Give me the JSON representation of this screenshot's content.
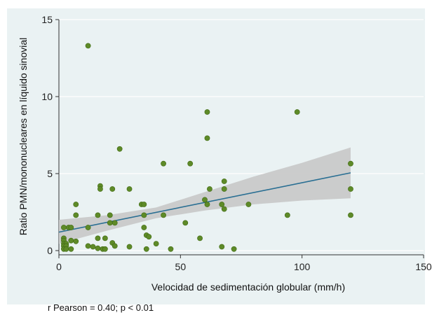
{
  "chart_data": {
    "type": "scatter",
    "title": "",
    "xlabel": "Velocidad de sedimentación globular (mm/h)",
    "ylabel": "Ratio PMN/mononucleares en líquido sinovial",
    "xlim": [
      0,
      150
    ],
    "ylim": [
      0,
      15
    ],
    "xticks": [
      0,
      50,
      100,
      150
    ],
    "yticks": [
      0,
      5,
      10,
      15
    ],
    "grid": "horizontal",
    "colors": {
      "point": "#5e8a28",
      "point_stroke": "#3f6a12",
      "fit_line": "#2a6f93",
      "ci_band": "#c8c8c8",
      "background": "#eaf2f3",
      "grid": "#ffffff"
    },
    "fit": {
      "line": [
        [
          0,
          1.2
        ],
        [
          120,
          5.05
        ]
      ],
      "ci_upper": [
        [
          0,
          2.0
        ],
        [
          20,
          2.3
        ],
        [
          40,
          2.8
        ],
        [
          60,
          3.8
        ],
        [
          80,
          4.8
        ],
        [
          100,
          5.7
        ],
        [
          120,
          6.7
        ]
      ],
      "ci_lower": [
        [
          0,
          0.45
        ],
        [
          20,
          1.3
        ],
        [
          40,
          2.1
        ],
        [
          60,
          2.6
        ],
        [
          80,
          3.0
        ],
        [
          100,
          3.25
        ],
        [
          120,
          3.4
        ]
      ]
    },
    "points": [
      [
        12,
        13.3
      ],
      [
        61,
        9.0
      ],
      [
        98,
        9.0
      ],
      [
        61,
        7.3
      ],
      [
        25,
        6.6
      ],
      [
        43,
        5.65
      ],
      [
        54,
        5.65
      ],
      [
        120,
        5.65
      ],
      [
        68,
        4.5
      ],
      [
        17,
        4.2
      ],
      [
        17,
        4.0
      ],
      [
        22,
        4.0
      ],
      [
        29,
        4.0
      ],
      [
        62,
        4.0
      ],
      [
        68,
        4.0
      ],
      [
        120,
        4.0
      ],
      [
        60,
        3.3
      ],
      [
        61,
        3.0
      ],
      [
        67,
        3.0
      ],
      [
        78,
        3.0
      ],
      [
        7,
        3.0
      ],
      [
        34,
        3.0
      ],
      [
        35,
        3.0
      ],
      [
        68,
        2.7
      ],
      [
        7,
        2.3
      ],
      [
        16,
        2.3
      ],
      [
        21,
        2.3
      ],
      [
        35,
        2.3
      ],
      [
        43,
        2.3
      ],
      [
        94,
        2.3
      ],
      [
        120,
        2.3
      ],
      [
        21,
        1.8
      ],
      [
        23,
        1.8
      ],
      [
        52,
        1.8
      ],
      [
        2,
        1.5
      ],
      [
        4,
        1.5
      ],
      [
        5,
        1.5
      ],
      [
        12,
        1.5
      ],
      [
        35,
        1.5
      ],
      [
        36,
        1.0
      ],
      [
        37,
        0.9
      ],
      [
        58,
        0.8
      ],
      [
        2,
        0.8
      ],
      [
        16,
        0.8
      ],
      [
        19,
        0.8
      ],
      [
        2,
        0.65
      ],
      [
        5,
        0.65
      ],
      [
        7,
        0.6
      ],
      [
        2,
        0.45
      ],
      [
        3,
        0.45
      ],
      [
        22,
        0.5
      ],
      [
        40,
        0.45
      ],
      [
        2,
        0.3
      ],
      [
        3,
        0.3
      ],
      [
        12,
        0.3
      ],
      [
        14,
        0.25
      ],
      [
        23,
        0.3
      ],
      [
        29,
        0.25
      ],
      [
        67,
        0.25
      ],
      [
        2,
        0.1
      ],
      [
        3,
        0.1
      ],
      [
        5,
        0.1
      ],
      [
        16,
        0.15
      ],
      [
        18,
        0.1
      ],
      [
        19,
        0.1
      ],
      [
        36,
        0.1
      ],
      [
        46,
        0.1
      ],
      [
        72,
        0.1
      ]
    ]
  },
  "caption": "r Pearson = 0.40; p < 0.01"
}
